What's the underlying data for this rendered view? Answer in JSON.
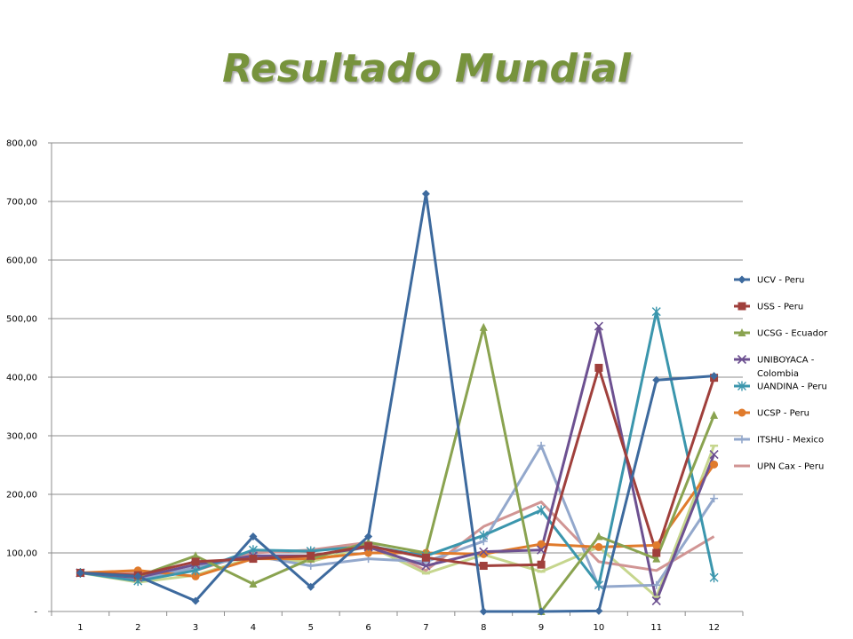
{
  "slide": {
    "title": "Resultado Mundial"
  },
  "chart_data": {
    "type": "line",
    "title": "",
    "xlabel": "",
    "ylabel": "",
    "categories": [
      "1",
      "2",
      "3",
      "4",
      "5",
      "6",
      "7",
      "8",
      "9",
      "10",
      "11",
      "12"
    ],
    "ylim": [
      0,
      800
    ],
    "y_ticks": [
      "-",
      "100,00",
      "200,00",
      "300,00",
      "400,00",
      "500,00",
      "600,00",
      "700,00",
      "800,00"
    ],
    "grid": true,
    "legend_position": "right",
    "series": [
      {
        "name": "UCV - Peru",
        "color": "#3d6a9e",
        "marker": "diamond",
        "values": [
          66,
          60,
          18,
          128,
          42,
          128,
          713,
          0,
          0,
          1,
          395,
          402
        ]
      },
      {
        "name": "USS - Peru",
        "color": "#a0403c",
        "marker": "square",
        "values": [
          66,
          62,
          85,
          90,
          95,
          112,
          92,
          78,
          80,
          416,
          100,
          399
        ]
      },
      {
        "name": "UCSG - Ecuador",
        "color": "#8aa350",
        "marker": "triangle",
        "values": [
          66,
          60,
          95,
          47,
          90,
          118,
          100,
          485,
          0,
          128,
          90,
          335
        ]
      },
      {
        "name": "UNIBOYACA - Colombia",
        "color": "#6d5191",
        "marker": "x",
        "values": [
          66,
          58,
          80,
          95,
          95,
          110,
          78,
          102,
          105,
          487,
          18,
          268
        ]
      },
      {
        "name": "UANDINA - Peru",
        "color": "#3b96ad",
        "marker": "star",
        "values": [
          66,
          52,
          70,
          105,
          103,
          112,
          95,
          130,
          173,
          45,
          512,
          58
        ]
      },
      {
        "name": "UCSP - Peru",
        "color": "#e07b2c",
        "marker": "circle",
        "values": [
          66,
          70,
          60,
          90,
          90,
          100,
          100,
          98,
          115,
          110,
          113,
          251
        ]
      },
      {
        "name": "ITSHU - Mexico",
        "color": "#93a8cc",
        "marker": "plus",
        "values": [
          66,
          55,
          75,
          95,
          78,
          90,
          85,
          120,
          283,
          42,
          45,
          193
        ]
      },
      {
        "name": "UPN Cax - Peru",
        "color": "#d19594",
        "marker": "none",
        "values": [
          66,
          65,
          70,
          100,
          105,
          118,
          70,
          145,
          187,
          85,
          70,
          128
        ]
      },
      {
        "name": "",
        "color": "#c6d68e",
        "marker": "dash",
        "values": [
          66,
          50,
          62,
          92,
          85,
          112,
          65,
          97,
          68,
          110,
          25,
          283
        ]
      }
    ]
  }
}
